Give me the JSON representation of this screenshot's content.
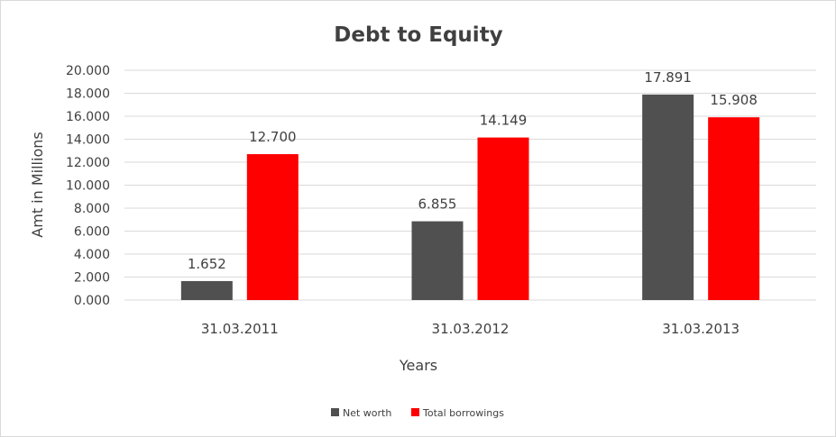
{
  "chart_data": {
    "type": "bar",
    "title": "Debt to Equity",
    "xlabel": "Years",
    "ylabel": "Amt in Millions",
    "categories": [
      "31.03.2011",
      "31.03.2012",
      "31.03.2013"
    ],
    "series": [
      {
        "name": "Net worth",
        "values": [
          1.652,
          6.855,
          17.891
        ],
        "labels": [
          "1.652",
          "6.855",
          "17.891"
        ],
        "color": "#505050"
      },
      {
        "name": "Total borrowings",
        "values": [
          12.7,
          14.149,
          15.908
        ],
        "labels": [
          "12.700",
          "14.149",
          "15.908"
        ],
        "color": "#ff0000"
      }
    ],
    "ylim": [
      0,
      20
    ],
    "yticks": [
      "0.000",
      "2.000",
      "4.000",
      "6.000",
      "8.000",
      "10.000",
      "12.000",
      "14.000",
      "16.000",
      "18.000",
      "20.000"
    ],
    "grid": true,
    "legend": "bottom"
  }
}
